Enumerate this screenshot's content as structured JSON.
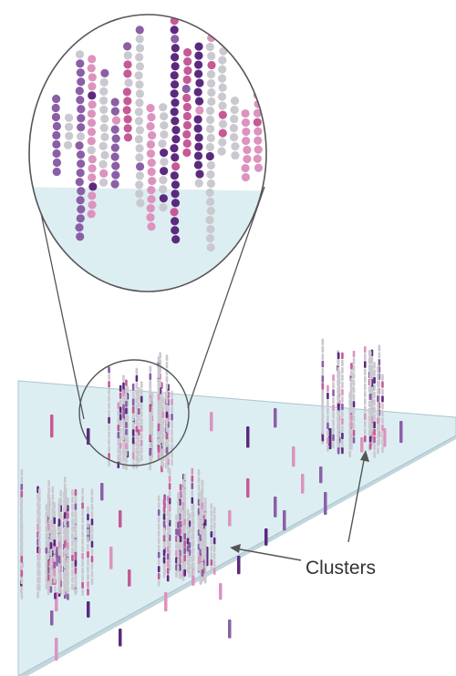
{
  "label": {
    "text": "Clusters"
  },
  "colors": {
    "background": "#ffffff",
    "slide_fill": "#ddeef3",
    "slide_edge": "#a9c6cf",
    "slide_shadow": "#c2d6dc",
    "strand_pink": "#c55a96",
    "strand_pink_light": "#dc93be",
    "strand_purple": "#5b2a7e",
    "strand_purple_mid": "#8b5fa6",
    "strand_grey": "#c9c9cf",
    "magnifier_outline": "#555555",
    "arrow": "#555555",
    "label_text": "#333333"
  }
}
